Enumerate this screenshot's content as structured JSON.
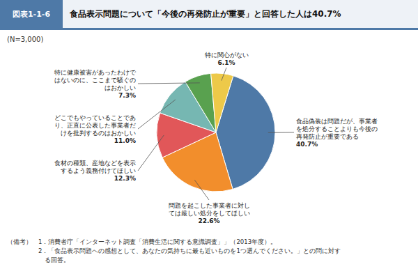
{
  "chart_data": {
    "type": "pie",
    "title": "食品表示問題について「今後の再発防止が重要」と回答した人は40.7%",
    "categories": [
      "食品偽装は問題だが、事業者\nを処分することよりも今後の\n再発防止が重要である",
      "問題を起こした事業者に対し\nては厳しい処分をしてほしい",
      "食材の種類、産地などを表示\nするよう義務付けてほしい",
      "どこでもやっていることであ\nり、正直に公表した事業者だ\nけを批判するのはおかしい",
      "特に健康被害があったわけで\nはないのに、ここまで騒ぐの\nはおかしい",
      "特に関心がない"
    ],
    "values": [
      40.7,
      22.6,
      12.3,
      11.0,
      7.3,
      6.1
    ],
    "value_labels": [
      "40.7%",
      "22.6%",
      "12.3%",
      "11.0%",
      "7.3%",
      "6.1%"
    ],
    "annotations": [
      "図表1-1-6",
      "(N=3,000)",
      "（備考）　1．消費者庁「インターネット調査「消費生活に関する意識調査」」（2013年度）。",
      "　　　　　2．「食品表示問題への感想として、あなたの気持ちに最も近いものを1つ選んでください。」との問に対す",
      "　　　　　　る回答。"
    ]
  }
}
